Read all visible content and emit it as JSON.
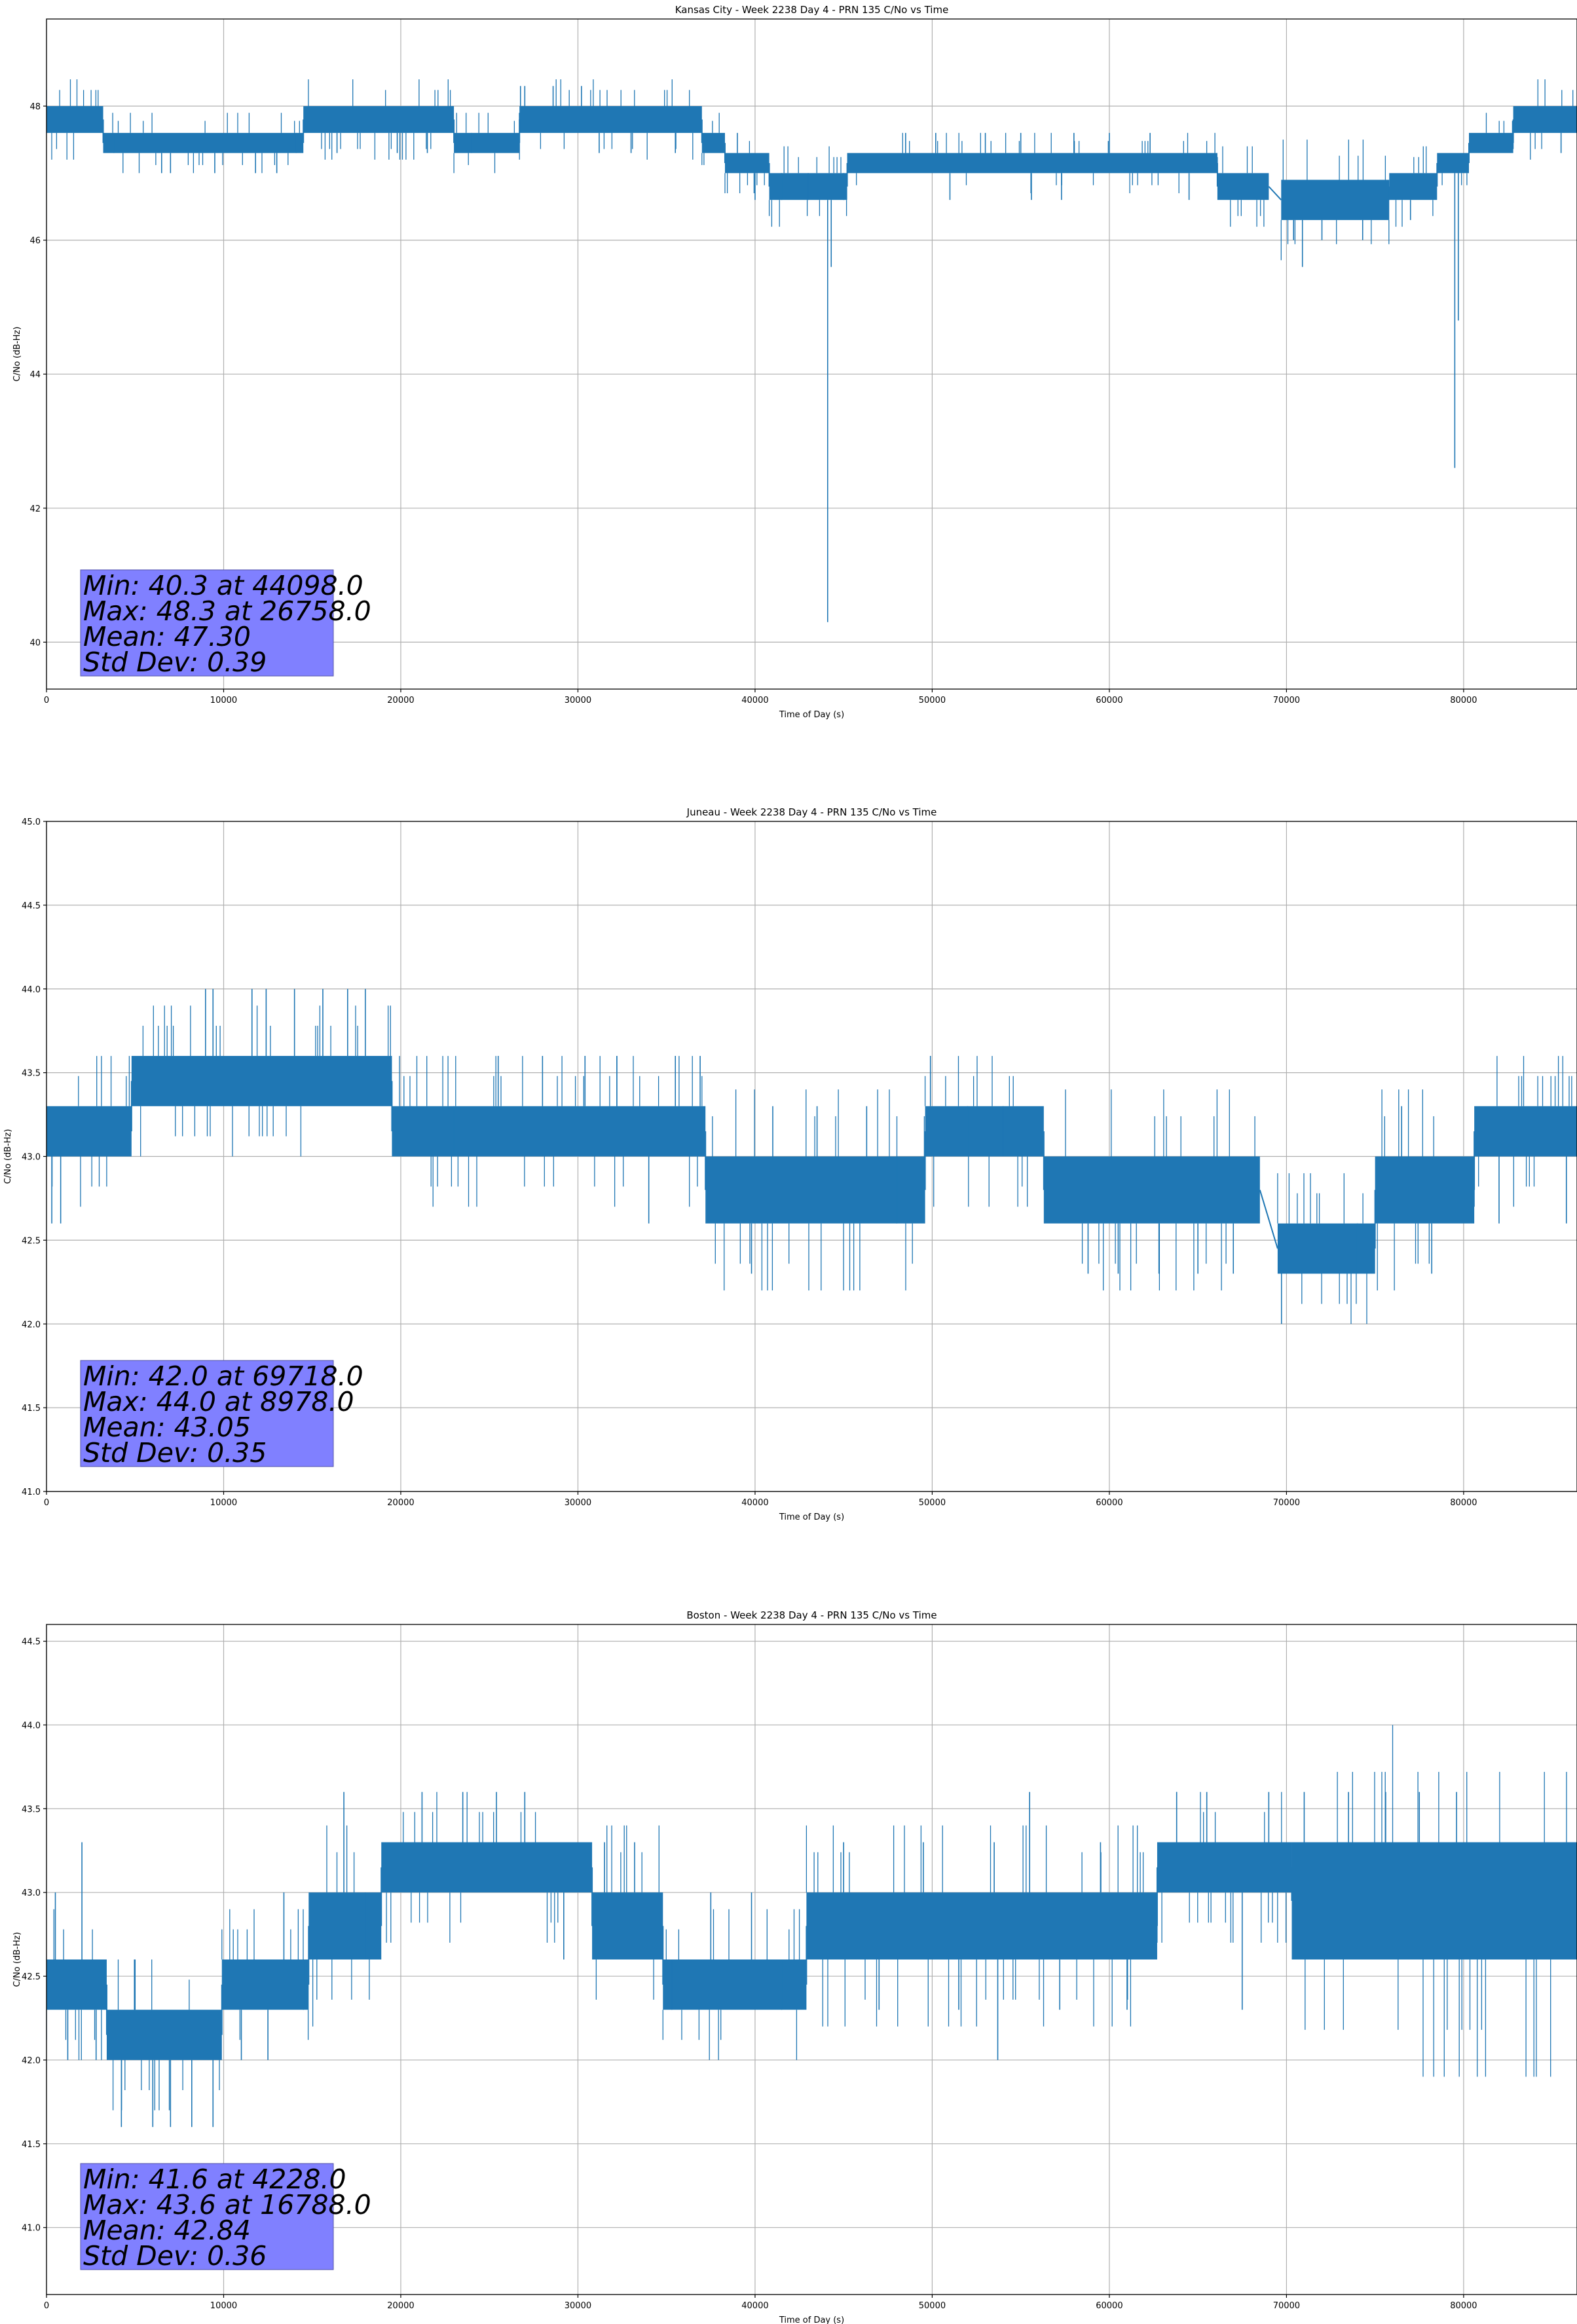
{
  "colors": {
    "series": "#1f77b4",
    "grid": "#b0b0b0",
    "stats_box": "#8080ff"
  },
  "chart_data": [
    {
      "type": "line",
      "title": "Kansas City - Week 2238 Day 4 - PRN 135 C/No vs Time",
      "xlabel": "Time of Day (s)",
      "ylabel": "C/No (dB-Hz)",
      "xlim": [
        0,
        86400
      ],
      "ylim": [
        39.3,
        49.3
      ],
      "xticks": [
        0,
        10000,
        20000,
        30000,
        40000,
        50000,
        60000,
        70000,
        80000
      ],
      "yticks": [
        40,
        42,
        44,
        46,
        48
      ],
      "ytick_labels": [
        "40",
        "42",
        "44",
        "46",
        "48"
      ],
      "grid": true,
      "stats": [
        "Min: 40.3 at 44098.0",
        "Max: 48.3 at 26758.0",
        "Mean: 47.30",
        "Std Dev: 0.39"
      ],
      "series": [
        {
          "segments": [
            {
              "x": [
                0,
                3200
              ],
              "lo": 47.6,
              "hi": 48.0
            },
            {
              "x": [
                3200,
                14500
              ],
              "lo": 47.3,
              "hi": 47.6
            },
            {
              "x": [
                14500,
                23000
              ],
              "lo": 47.6,
              "hi": 48.0
            },
            {
              "x": [
                23000,
                26700
              ],
              "lo": 47.3,
              "hi": 47.6
            },
            {
              "x": [
                26700,
                37000
              ],
              "lo": 47.6,
              "hi": 48.0
            },
            {
              "x": [
                37000,
                38300
              ],
              "lo": 47.3,
              "hi": 47.6
            },
            {
              "x": [
                38300,
                40800
              ],
              "lo": 47.0,
              "hi": 47.3
            },
            {
              "x": [
                40800,
                45200
              ],
              "lo": 46.6,
              "hi": 47.0
            },
            {
              "x": [
                45200,
                66100
              ],
              "lo": 47.0,
              "hi": 47.3
            },
            {
              "x": [
                66100,
                69000
              ],
              "lo": 46.6,
              "hi": 47.0
            },
            {
              "x": [
                69700,
                75800
              ],
              "lo": 46.3,
              "hi": 46.9
            },
            {
              "x": [
                75800,
                78500
              ],
              "lo": 46.6,
              "hi": 47.0
            },
            {
              "x": [
                78500,
                80300
              ],
              "lo": 47.0,
              "hi": 47.3
            },
            {
              "x": [
                80300,
                82800
              ],
              "lo": 47.3,
              "hi": 47.6
            },
            {
              "x": [
                82800,
                86400
              ],
              "lo": 47.6,
              "hi": 48.0
            }
          ],
          "spikes": [
            {
              "x": 3800,
              "y": 47.3
            },
            {
              "x": 6500,
              "y": 47.0
            },
            {
              "x": 7000,
              "y": 47.0
            },
            {
              "x": 9500,
              "y": 47.0
            },
            {
              "x": 11800,
              "y": 47.0
            },
            {
              "x": 13000,
              "y": 47.0
            },
            {
              "x": 14100,
              "y": 47.3
            },
            {
              "x": 16400,
              "y": 47.3
            },
            {
              "x": 19800,
              "y": 47.3
            },
            {
              "x": 21500,
              "y": 47.3
            },
            {
              "x": 24000,
              "y": 47.3
            },
            {
              "x": 26758,
              "y": 48.3
            },
            {
              "x": 27000,
              "y": 48.3
            },
            {
              "x": 28600,
              "y": 48.3
            },
            {
              "x": 30200,
              "y": 48.3
            },
            {
              "x": 31200,
              "y": 47.3
            },
            {
              "x": 33000,
              "y": 47.3
            },
            {
              "x": 35500,
              "y": 47.3
            },
            {
              "x": 36400,
              "y": 48.0
            },
            {
              "x": 39000,
              "y": 47.6
            },
            {
              "x": 40000,
              "y": 46.6
            },
            {
              "x": 41500,
              "y": 46.6
            },
            {
              "x": 43000,
              "y": 46.6
            },
            {
              "x": 44098,
              "y": 40.3
            },
            {
              "x": 44300,
              "y": 45.6
            },
            {
              "x": 45000,
              "y": 46.6
            },
            {
              "x": 48500,
              "y": 47.6
            },
            {
              "x": 50200,
              "y": 47.6
            },
            {
              "x": 51000,
              "y": 46.6
            },
            {
              "x": 53000,
              "y": 47.6
            },
            {
              "x": 55000,
              "y": 47.6
            },
            {
              "x": 55600,
              "y": 46.6
            },
            {
              "x": 57300,
              "y": 46.6
            },
            {
              "x": 58000,
              "y": 47.6
            },
            {
              "x": 60000,
              "y": 47.6
            },
            {
              "x": 62300,
              "y": 47.6
            },
            {
              "x": 64500,
              "y": 46.6
            },
            {
              "x": 70400,
              "y": 46.0
            },
            {
              "x": 70900,
              "y": 45.6
            },
            {
              "x": 72000,
              "y": 46.0
            },
            {
              "x": 74300,
              "y": 46.0
            },
            {
              "x": 77000,
              "y": 46.3
            },
            {
              "x": 79500,
              "y": 42.6
            },
            {
              "x": 79700,
              "y": 44.8
            },
            {
              "x": 81000,
              "y": 47.6
            },
            {
              "x": 83000,
              "y": 48.0
            },
            {
              "x": 85500,
              "y": 47.3
            }
          ]
        }
      ]
    },
    {
      "type": "line",
      "title": "Juneau - Week 2238 Day 4 - PRN 135 C/No vs Time",
      "xlabel": "Time of Day (s)",
      "ylabel": "C/No (dB-Hz)",
      "xlim": [
        0,
        86400
      ],
      "ylim": [
        41.0,
        45.0
      ],
      "xticks": [
        0,
        10000,
        20000,
        30000,
        40000,
        50000,
        60000,
        70000,
        80000
      ],
      "yticks": [
        41.0,
        41.5,
        42.0,
        42.5,
        43.0,
        43.5,
        44.0,
        44.5,
        45.0
      ],
      "ytick_labels": [
        "41.0",
        "41.5",
        "42.0",
        "42.5",
        "43.0",
        "43.5",
        "44.0",
        "44.5",
        "45.0"
      ],
      "grid": true,
      "stats": [
        "Min: 42.0 at 69718.0",
        "Max: 44.0 at 8978.0",
        "Mean: 43.05",
        "Std Dev: 0.35"
      ],
      "series": [
        {
          "segments": [
            {
              "x": [
                0,
                4800
              ],
              "lo": 43.0,
              "hi": 43.3
            },
            {
              "x": [
                4800,
                19500
              ],
              "lo": 43.3,
              "hi": 43.6
            },
            {
              "x": [
                19500,
                37200
              ],
              "lo": 43.0,
              "hi": 43.3
            },
            {
              "x": [
                37200,
                49600
              ],
              "lo": 42.6,
              "hi": 43.0
            },
            {
              "x": [
                49600,
                56300
              ],
              "lo": 43.0,
              "hi": 43.3
            },
            {
              "x": [
                56300,
                68500
              ],
              "lo": 42.6,
              "hi": 43.0
            },
            {
              "x": [
                69500,
                75000
              ],
              "lo": 42.3,
              "hi": 42.6
            },
            {
              "x": [
                75000,
                80600
              ],
              "lo": 42.6,
              "hi": 43.0
            },
            {
              "x": [
                80600,
                86400
              ],
              "lo": 43.0,
              "hi": 43.3
            }
          ],
          "spikes": [
            {
              "x": 300,
              "y": 42.6
            },
            {
              "x": 800,
              "y": 42.6
            },
            {
              "x": 3200,
              "y": 43.3
            },
            {
              "x": 8978,
              "y": 44.0
            },
            {
              "x": 9400,
              "y": 44.0
            },
            {
              "x": 11600,
              "y": 44.0
            },
            {
              "x": 12400,
              "y": 44.0
            },
            {
              "x": 14000,
              "y": 44.0
            },
            {
              "x": 15600,
              "y": 44.0
            },
            {
              "x": 17000,
              "y": 44.0
            },
            {
              "x": 18000,
              "y": 44.0
            },
            {
              "x": 20600,
              "y": 43.0
            },
            {
              "x": 23000,
              "y": 43.0
            },
            {
              "x": 25500,
              "y": 43.6
            },
            {
              "x": 28000,
              "y": 43.6
            },
            {
              "x": 30400,
              "y": 43.6
            },
            {
              "x": 32200,
              "y": 43.6
            },
            {
              "x": 34000,
              "y": 42.6
            },
            {
              "x": 35500,
              "y": 43.6
            },
            {
              "x": 36900,
              "y": 43.6
            },
            {
              "x": 39800,
              "y": 42.3
            },
            {
              "x": 41000,
              "y": 43.3
            },
            {
              "x": 43500,
              "y": 43.3
            },
            {
              "x": 46300,
              "y": 43.3
            },
            {
              "x": 48000,
              "y": 42.6
            },
            {
              "x": 49900,
              "y": 43.6
            },
            {
              "x": 52000,
              "y": 43.0
            },
            {
              "x": 54000,
              "y": 43.0
            },
            {
              "x": 58800,
              "y": 42.3
            },
            {
              "x": 60500,
              "y": 42.3
            },
            {
              "x": 62800,
              "y": 42.3
            },
            {
              "x": 65000,
              "y": 42.3
            },
            {
              "x": 67000,
              "y": 42.3
            },
            {
              "x": 69718,
              "y": 42.0
            },
            {
              "x": 71500,
              "y": 42.6
            },
            {
              "x": 74000,
              "y": 42.3
            },
            {
              "x": 76500,
              "y": 43.3
            },
            {
              "x": 78200,
              "y": 42.3
            },
            {
              "x": 82000,
              "y": 42.6
            },
            {
              "x": 84500,
              "y": 43.3
            },
            {
              "x": 85800,
              "y": 42.6
            }
          ]
        }
      ]
    },
    {
      "type": "line",
      "title": "Boston - Week 2238 Day 4 - PRN 135 C/No vs Time",
      "xlabel": "Time of Day (s)",
      "ylabel": "C/No (dB-Hz)",
      "xlim": [
        0,
        86400
      ],
      "ylim": [
        40.6,
        44.6
      ],
      "xticks": [
        0,
        10000,
        20000,
        30000,
        40000,
        50000,
        60000,
        70000,
        80000
      ],
      "yticks": [
        41.0,
        41.5,
        42.0,
        42.5,
        43.0,
        43.5,
        44.0,
        44.5
      ],
      "ytick_labels": [
        "41.0",
        "41.5",
        "42.0",
        "42.5",
        "43.0",
        "43.5",
        "44.0",
        "44.5"
      ],
      "grid": true,
      "stats": [
        "Min: 41.6 at 4228.0",
        "Max: 43.6 at 16788.0",
        "Mean: 42.84",
        "Std Dev: 0.36"
      ],
      "series": [
        {
          "segments": [
            {
              "x": [
                0,
                3400
              ],
              "lo": 42.3,
              "hi": 42.6
            },
            {
              "x": [
                3400,
                9900
              ],
              "lo": 42.0,
              "hi": 42.3
            },
            {
              "x": [
                9900,
                14800
              ],
              "lo": 42.3,
              "hi": 42.6
            },
            {
              "x": [
                14800,
                18900
              ],
              "lo": 42.6,
              "hi": 43.0
            },
            {
              "x": [
                18900,
                30800
              ],
              "lo": 43.0,
              "hi": 43.3
            },
            {
              "x": [
                30800,
                34800
              ],
              "lo": 42.6,
              "hi": 43.0
            },
            {
              "x": [
                34800,
                42900
              ],
              "lo": 42.3,
              "hi": 42.6
            },
            {
              "x": [
                42900,
                62700
              ],
              "lo": 42.6,
              "hi": 43.0
            },
            {
              "x": [
                62700,
                70300
              ],
              "lo": 43.0,
              "hi": 43.3
            },
            {
              "x": [
                70300,
                86400
              ],
              "lo": 42.6,
              "hi": 43.3
            }
          ],
          "spikes": [
            {
              "x": 500,
              "y": 43.0
            },
            {
              "x": 1200,
              "y": 42.0
            },
            {
              "x": 2000,
              "y": 43.3
            },
            {
              "x": 2800,
              "y": 42.0
            },
            {
              "x": 4228,
              "y": 41.6
            },
            {
              "x": 5000,
              "y": 42.6
            },
            {
              "x": 6000,
              "y": 41.6
            },
            {
              "x": 7000,
              "y": 41.6
            },
            {
              "x": 8200,
              "y": 41.6
            },
            {
              "x": 9400,
              "y": 41.6
            },
            {
              "x": 11000,
              "y": 42.0
            },
            {
              "x": 12500,
              "y": 42.0
            },
            {
              "x": 13400,
              "y": 43.0
            },
            {
              "x": 14500,
              "y": 42.3
            },
            {
              "x": 16788,
              "y": 43.6
            },
            {
              "x": 18000,
              "y": 42.6
            },
            {
              "x": 21200,
              "y": 43.6
            },
            {
              "x": 23500,
              "y": 43.6
            },
            {
              "x": 25400,
              "y": 43.6
            },
            {
              "x": 27000,
              "y": 43.6
            },
            {
              "x": 29200,
              "y": 42.6
            },
            {
              "x": 31500,
              "y": 43.3
            },
            {
              "x": 33200,
              "y": 43.3
            },
            {
              "x": 35300,
              "y": 42.3
            },
            {
              "x": 37500,
              "y": 43.0
            },
            {
              "x": 39800,
              "y": 43.0
            },
            {
              "x": 41500,
              "y": 42.3
            },
            {
              "x": 45000,
              "y": 43.3
            },
            {
              "x": 47000,
              "y": 42.3
            },
            {
              "x": 49500,
              "y": 43.3
            },
            {
              "x": 51500,
              "y": 42.3
            },
            {
              "x": 53500,
              "y": 43.3
            },
            {
              "x": 53700,
              "y": 42.0
            },
            {
              "x": 55500,
              "y": 43.6
            },
            {
              "x": 57200,
              "y": 42.3
            },
            {
              "x": 59500,
              "y": 43.3
            },
            {
              "x": 61000,
              "y": 42.3
            },
            {
              "x": 63800,
              "y": 43.6
            },
            {
              "x": 65500,
              "y": 43.6
            },
            {
              "x": 67500,
              "y": 42.3
            },
            {
              "x": 69000,
              "y": 43.6
            },
            {
              "x": 71000,
              "y": 43.6
            },
            {
              "x": 73500,
              "y": 43.6
            },
            {
              "x": 75600,
              "y": 43.6
            },
            {
              "x": 77500,
              "y": 43.6
            },
            {
              "x": 79600,
              "y": 43.6
            },
            {
              "x": 82000,
              "y": 43.3
            },
            {
              "x": 84800,
              "y": 43.3
            }
          ]
        }
      ]
    }
  ]
}
